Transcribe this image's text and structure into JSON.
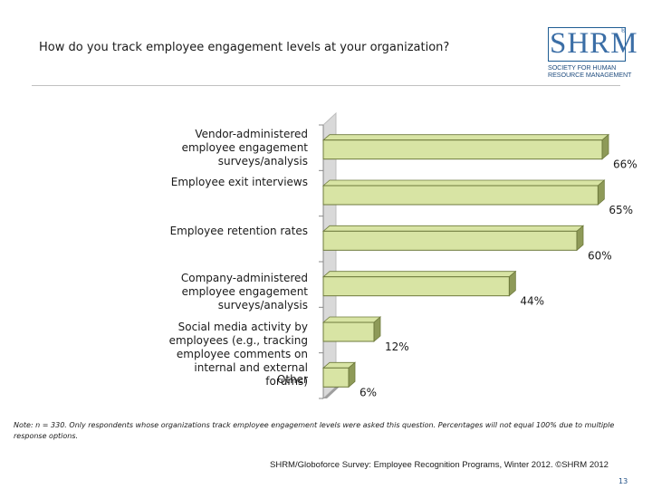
{
  "header": {
    "title": "How do you track employee engagement levels at your organization?"
  },
  "logo": {
    "word": "SHRM",
    "reg": "®",
    "line1": "SOCIETY FOR HUMAN",
    "line2": "RESOURCE MANAGEMENT"
  },
  "colors": {
    "bar_fill": "#d8e4a4",
    "bar_stroke": "#6e7a3c",
    "bar_side": "#8e9a58",
    "wall": "#d9d9d9",
    "floor": "#9e9e9e",
    "text": "#1a1a1a"
  },
  "chart_data": {
    "type": "bar",
    "orientation": "horizontal",
    "style": "3d",
    "categories": [
      "Vendor-administered employee engagement surveys/analysis",
      "Employee exit interviews",
      "Employee retention rates",
      "Company-administered employee engagement surveys/analysis",
      "Social media activity by employees (e.g., tracking employee comments on internal and external forums)",
      "Other"
    ],
    "category_lines": [
      [
        "Vendor-administered",
        "employee engagement",
        "surveys/analysis"
      ],
      [
        "Employee exit interviews"
      ],
      [
        "Employee retention rates"
      ],
      [
        "Company-administered",
        "employee engagement",
        "surveys/analysis"
      ],
      [
        "Social media activity by",
        "employees (e.g., tracking",
        "employee comments on",
        "internal and external",
        "forums)"
      ],
      [
        "Other"
      ]
    ],
    "values": [
      66,
      65,
      60,
      44,
      12,
      6
    ],
    "data_labels": [
      "66%",
      "65%",
      "60%",
      "44%",
      "12%",
      "6%"
    ],
    "xlim": [
      0,
      70
    ],
    "unit": "%",
    "legend": "none",
    "grid": false
  },
  "footer": {
    "note_line1": "Note: n = 330. Only respondents whose organizations track employee engagement levels were asked this question. Percentages will not equal 100% due to multiple",
    "note_line2": "response options.",
    "source": "SHRM/Globoforce Survey: Employee Recognition Programs, Winter 2012. ©SHRM 2012",
    "page_number": "13"
  }
}
